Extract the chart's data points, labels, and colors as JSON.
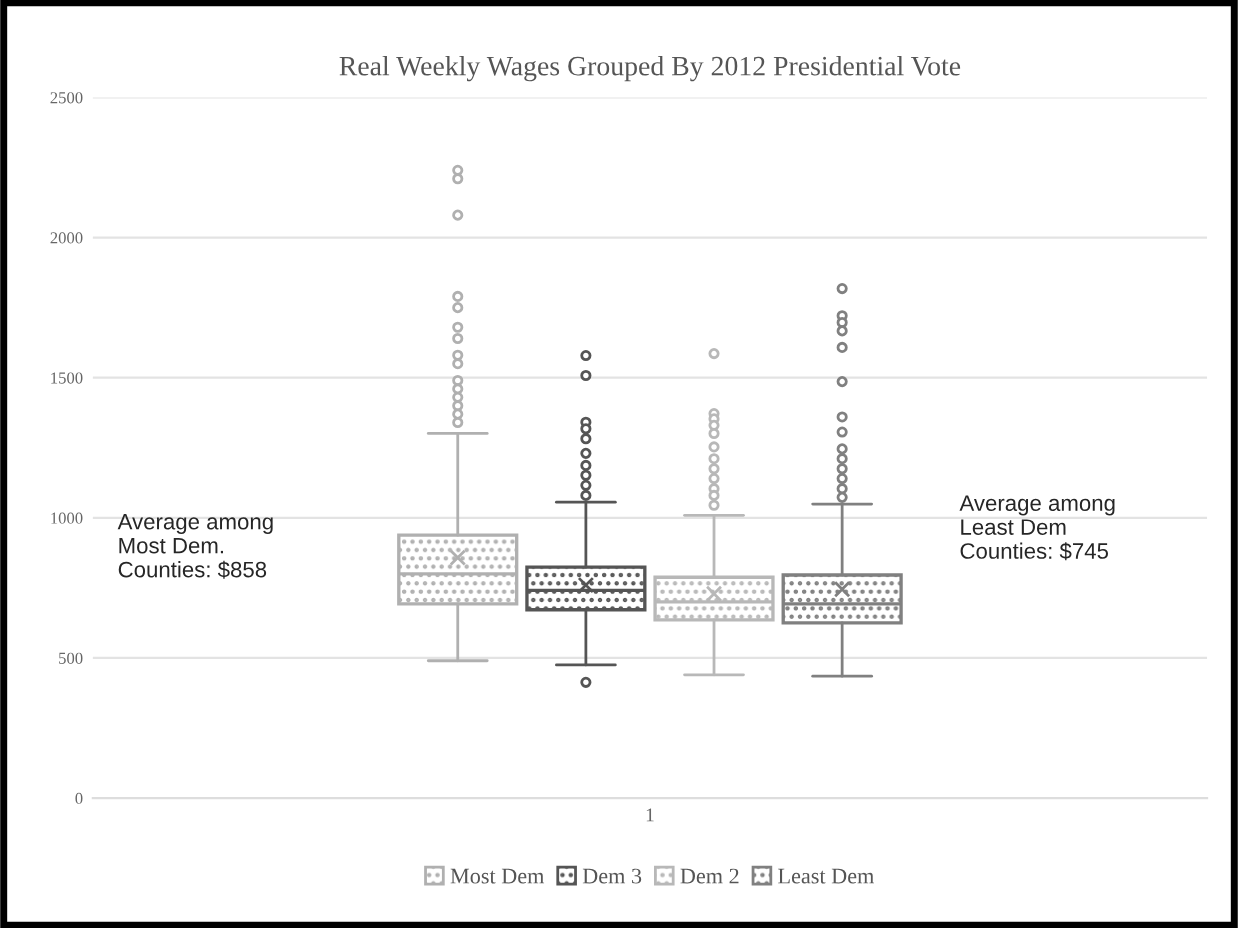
{
  "chart_data": {
    "type": "box",
    "title": "Real Weekly Wages Grouped By 2012 Presidential Vote",
    "categories": [
      "1"
    ],
    "series": [
      {
        "name": "Most Dem",
        "color": "#b0b0b0",
        "boxes": [
          {
            "low": 490,
            "q1": 693,
            "median": 800,
            "q3": 938,
            "high": 1301,
            "mean": 858,
            "outliers": [
              2240,
              2210,
              2080,
              1790,
              1750,
              1680,
              1640,
              1580,
              1550,
              1490,
              1460,
              1430,
              1400,
              1370,
              1340
            ]
          }
        ]
      },
      {
        "name": "Dem 3",
        "color": "#555555",
        "boxes": [
          {
            "low": 475,
            "q1": 672,
            "median": 741,
            "q3": 824,
            "high": 1056,
            "mean": 760,
            "outliers": [
              1579,
              1508,
              1341,
              1318,
              1282,
              1230,
              1187,
              1152,
              1116,
              1080,
              413
            ]
          }
        ]
      },
      {
        "name": "Dem 2",
        "color": "#b8b8b8",
        "boxes": [
          {
            "low": 440,
            "q1": 636,
            "median": 700,
            "q3": 788,
            "high": 1009,
            "mean": 729,
            "outliers": [
              1586,
              1372,
              1353,
              1330,
              1301,
              1253,
              1211,
              1175,
              1140,
              1104,
              1080,
              1045
            ]
          }
        ]
      },
      {
        "name": "Least Dem",
        "color": "#808080",
        "boxes": [
          {
            "low": 435,
            "q1": 625,
            "median": 693,
            "q3": 796,
            "high": 1049,
            "mean": 745,
            "outliers": [
              1818,
              1721,
              1697,
              1667,
              1608,
              1486,
              1360,
              1306,
              1246,
              1211,
              1175,
              1140,
              1104,
              1073
            ]
          }
        ]
      }
    ],
    "ylim": [
      0,
      2500
    ],
    "yticks": [
      0,
      500,
      1000,
      1500,
      2000,
      2500
    ],
    "grid": "y",
    "legend": "bottom",
    "annotations": [
      "Average among\nMost Dem.\nCounties: $858",
      "Average among\nLeast Dem\nCounties: $745"
    ]
  }
}
